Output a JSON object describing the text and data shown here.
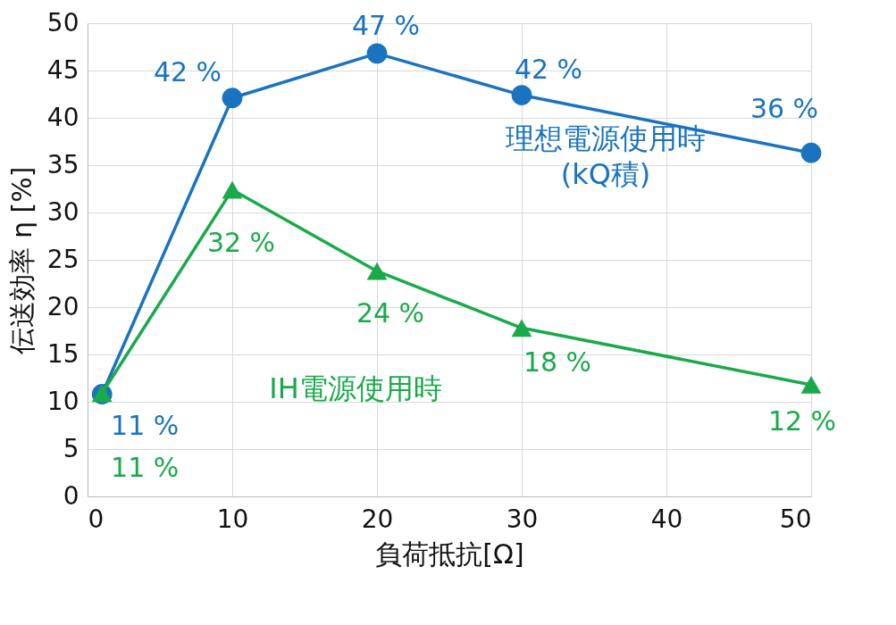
{
  "chart_data": {
    "type": "line",
    "xlabel": "負荷抵抗[Ω]",
    "ylabel": "伝送効率 η [%]",
    "xlim": [
      0,
      50
    ],
    "xticks": [
      0,
      10,
      20,
      30,
      40,
      50
    ],
    "ylim": [
      0,
      50
    ],
    "yticks": [
      0,
      5,
      10,
      15,
      20,
      25,
      30,
      35,
      40,
      45,
      50
    ],
    "grid": true,
    "legend": false,
    "line_style": "solid",
    "x": [
      1,
      10,
      20,
      30,
      50
    ],
    "series": [
      {
        "name": "理想電源使用時\n(kQ積)",
        "color": "#1a73c0",
        "marker": "circle",
        "values": [
          10.8,
          42.1,
          46.8,
          42.4,
          36.3
        ],
        "value_labels": [
          "11 %",
          "42 %",
          "47 %",
          "42 %",
          "36 %"
        ]
      },
      {
        "name": "IH電源使用時",
        "color": "#1aaa4a",
        "marker": "triangle",
        "values": [
          10.9,
          32.4,
          23.8,
          17.8,
          11.8
        ],
        "value_labels": [
          "11 %",
          "32 %",
          "24 %",
          "18 %",
          "12 %"
        ]
      }
    ]
  }
}
